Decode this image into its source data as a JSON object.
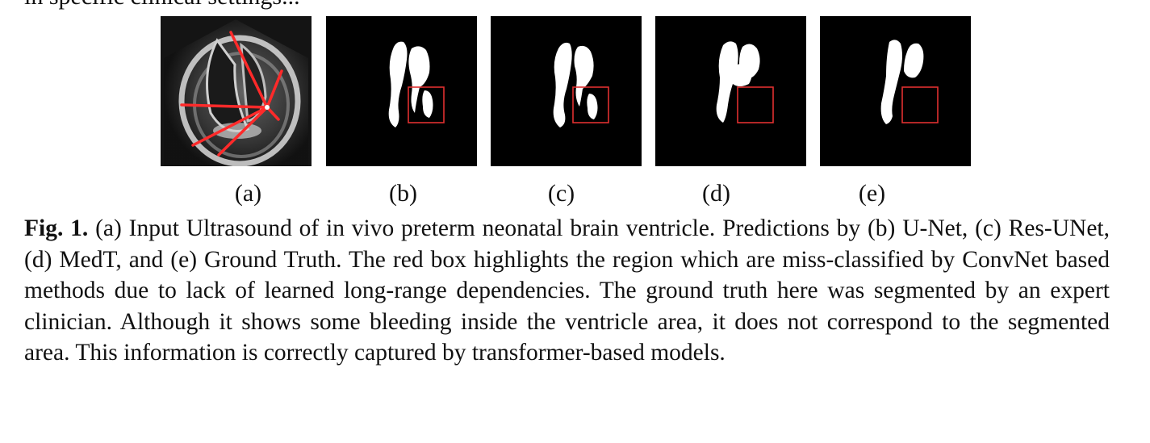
{
  "header_fragment": "in specific clinical settings...",
  "panels": [
    {
      "label": "(a)",
      "kind": "ultrasound"
    },
    {
      "label": "(b)",
      "kind": "prediction",
      "method": "U-Net"
    },
    {
      "label": "(c)",
      "kind": "prediction",
      "method": "Res-UNet"
    },
    {
      "label": "(d)",
      "kind": "prediction",
      "method": "MedT"
    },
    {
      "label": "(e)",
      "kind": "prediction",
      "method": "Ground Truth"
    }
  ],
  "colors": {
    "highlight_box": "#e03030",
    "segmentation_fill": "#ffffff",
    "background": "#000000",
    "annotation_lines": "#ff2a2a"
  },
  "caption": {
    "label": "Fig. 1.",
    "text": " (a) Input Ultrasound of in vivo preterm neonatal brain ventricle. Predictions by (b) U-Net, (c) Res-UNet, (d) MedT, and (e) Ground Truth. The red box highlights the region which are miss-classified by ConvNet based methods due to lack of learned long-range dependencies. The ground truth here was segmented by an expert clinician. Although it shows some bleeding inside the ventricle area, it does not correspond to the segmented area. This information is correctly captured by transformer-based models."
  }
}
